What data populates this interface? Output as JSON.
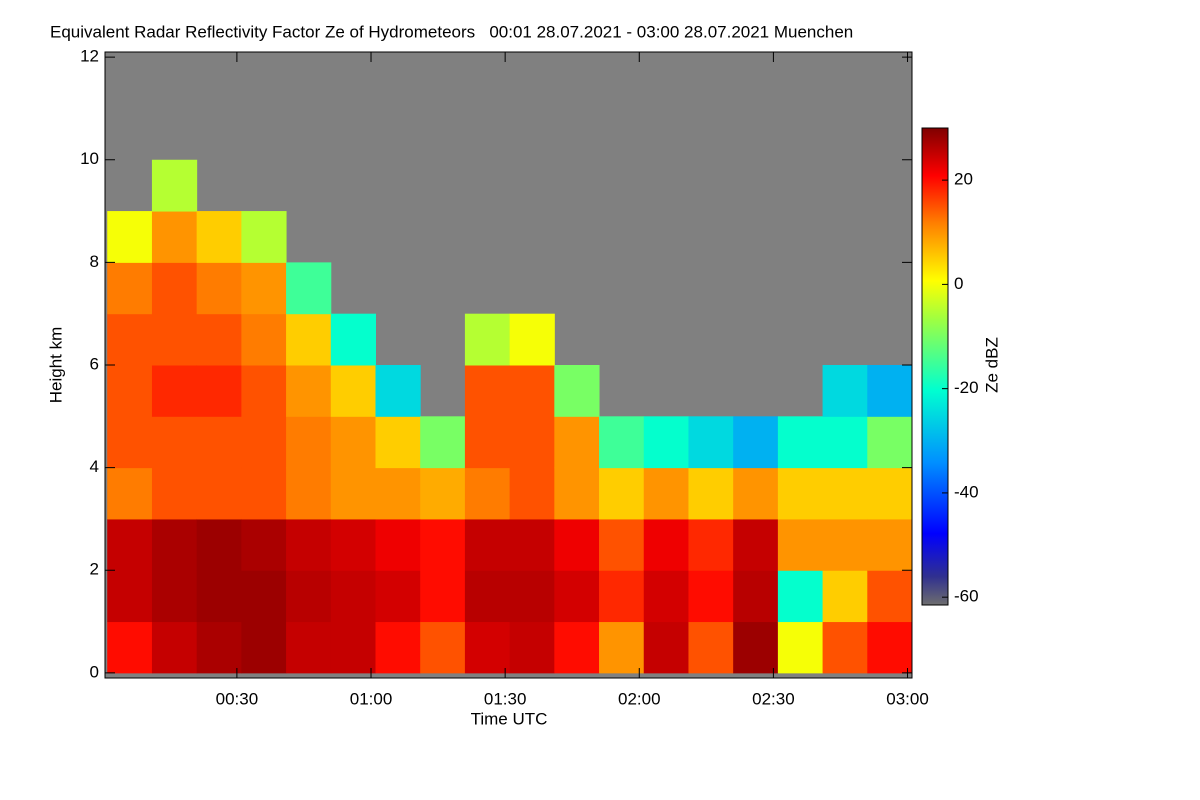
{
  "chart_data": {
    "type": "heatmap",
    "title": "Equivalent Radar Reflectivity Factor Ze of Hydrometeors   00:01 28.07.2021 - 03:00 28.07.2021 Muenchen",
    "xlabel": "Time UTC",
    "ylabel": "Height km",
    "colorbar_label": "Ze dBZ",
    "x": [
      6,
      16,
      26,
      36,
      46,
      56,
      66,
      76,
      86,
      96,
      106,
      116,
      126,
      136,
      146,
      156,
      166,
      176
    ],
    "y": [
      0.5,
      1.5,
      2.5,
      3.5,
      4.5,
      5.5,
      6.5,
      7.5,
      8.5,
      9.5,
      10.5,
      11.5
    ],
    "values": [
      [
        20,
        25,
        25,
        12,
        15,
        15,
        15,
        12,
        0,
        null,
        null,
        null
      ],
      [
        25,
        27,
        27,
        15,
        15,
        18,
        15,
        15,
        10,
        -5,
        null,
        null
      ],
      [
        27,
        28,
        28,
        15,
        15,
        18,
        15,
        12,
        5,
        null,
        null,
        null
      ],
      [
        28,
        28,
        27,
        15,
        15,
        15,
        12,
        10,
        -5,
        null,
        null,
        null
      ],
      [
        25,
        26,
        25,
        12,
        12,
        10,
        5,
        -15,
        null,
        null,
        null,
        null
      ],
      [
        25,
        25,
        24,
        10,
        10,
        5,
        -20,
        null,
        null,
        null,
        null,
        null
      ],
      [
        20,
        24,
        22,
        10,
        5,
        -25,
        null,
        null,
        null,
        null,
        null,
        null
      ],
      [
        15,
        20,
        20,
        8,
        -10,
        null,
        null,
        null,
        null,
        null,
        null,
        null
      ],
      [
        24,
        26,
        25,
        12,
        15,
        15,
        -5,
        null,
        null,
        null,
        null,
        null
      ],
      [
        25,
        26,
        25,
        15,
        15,
        15,
        0,
        null,
        null,
        null,
        null,
        null
      ],
      [
        20,
        24,
        22,
        10,
        10,
        -10,
        null,
        null,
        null,
        null,
        null,
        null
      ],
      [
        10,
        18,
        15,
        5,
        -15,
        null,
        null,
        null,
        null,
        null,
        null,
        null
      ],
      [
        25,
        24,
        22,
        10,
        -20,
        null,
        null,
        null,
        null,
        null,
        null,
        null
      ],
      [
        15,
        20,
        18,
        5,
        -25,
        null,
        null,
        null,
        null,
        null,
        null,
        null
      ],
      [
        28,
        26,
        25,
        10,
        -30,
        null,
        null,
        null,
        null,
        null,
        null,
        null
      ],
      [
        0,
        -20,
        10,
        5,
        -20,
        null,
        null,
        null,
        null,
        null,
        null,
        null
      ],
      [
        15,
        5,
        10,
        5,
        -20,
        -25,
        null,
        null,
        null,
        null,
        null,
        null
      ],
      [
        20,
        15,
        10,
        5,
        -10,
        -30,
        null,
        null,
        null,
        null,
        null,
        null
      ]
    ],
    "xlim": [
      0.5,
      181
    ],
    "xticks": [
      {
        "value": 30,
        "label": "00:30"
      },
      {
        "value": 60,
        "label": "01:00"
      },
      {
        "value": 90,
        "label": "01:30"
      },
      {
        "value": 120,
        "label": "02:00"
      },
      {
        "value": 150,
        "label": "02:30"
      },
      {
        "value": 180,
        "label": "03:00"
      }
    ],
    "ylim": [
      -0.1,
      12.1
    ],
    "yticks": [
      0,
      2,
      4,
      6,
      8,
      10,
      12
    ],
    "clim": [
      -61.5,
      30
    ],
    "cticks": [
      -60,
      -40,
      -20,
      0,
      20
    ],
    "no_data_color": "#808080"
  }
}
